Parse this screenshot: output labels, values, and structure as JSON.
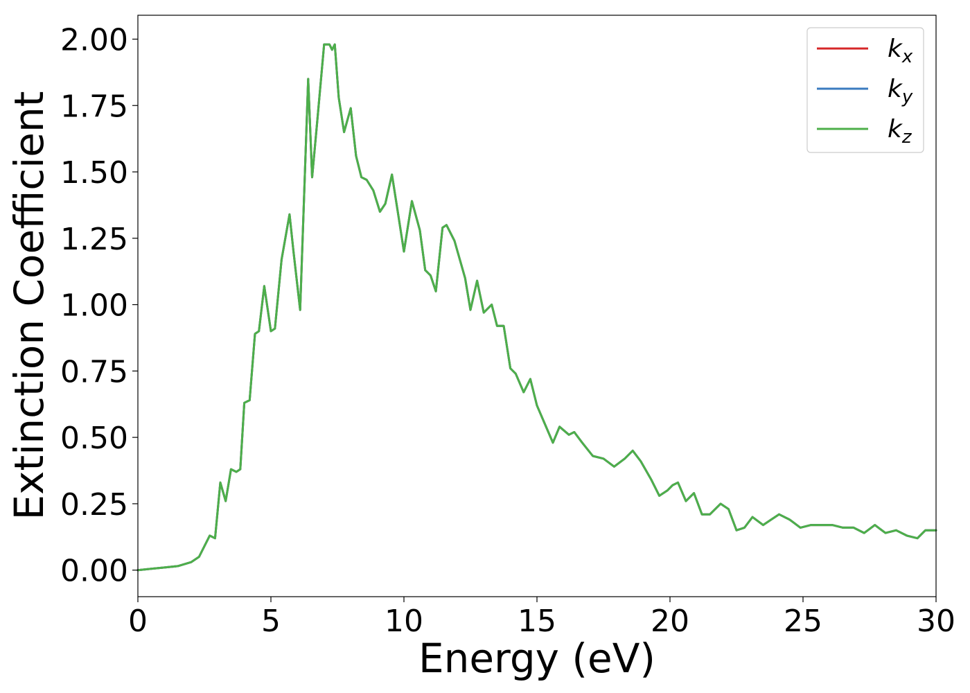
{
  "chart_data": {
    "type": "line",
    "xlabel": "Energy (eV)",
    "ylabel": "Extinction Coefficient",
    "xlim": [
      0,
      30
    ],
    "ylim": [
      -0.1,
      2.09
    ],
    "xticks": [
      0,
      5,
      10,
      15,
      20,
      25,
      30
    ],
    "yticks": [
      0.0,
      0.25,
      0.5,
      0.75,
      1.0,
      1.25,
      1.5,
      1.75,
      2.0
    ],
    "xtick_labels": [
      "0",
      "5",
      "10",
      "15",
      "20",
      "25",
      "30"
    ],
    "ytick_labels": [
      "0.00",
      "0.25",
      "0.50",
      "0.75",
      "1.00",
      "1.25",
      "1.50",
      "1.75",
      "2.00"
    ],
    "grid": false,
    "legend_position": "top-right",
    "x": [
      0,
      0.5,
      1.0,
      1.5,
      2.0,
      2.3,
      2.5,
      2.7,
      2.9,
      3.1,
      3.3,
      3.5,
      3.7,
      3.85,
      4.0,
      4.2,
      4.4,
      4.55,
      4.75,
      5.0,
      5.15,
      5.4,
      5.7,
      5.85,
      6.1,
      6.4,
      6.55,
      6.75,
      7.0,
      7.2,
      7.3,
      7.4,
      7.55,
      7.75,
      8.0,
      8.2,
      8.4,
      8.6,
      8.85,
      9.1,
      9.3,
      9.55,
      9.8,
      10.0,
      10.3,
      10.6,
      10.8,
      11.0,
      11.2,
      11.45,
      11.6,
      11.9,
      12.3,
      12.5,
      12.75,
      13.0,
      13.3,
      13.5,
      13.75,
      14.0,
      14.2,
      14.5,
      14.75,
      15.0,
      15.3,
      15.6,
      15.85,
      16.2,
      16.4,
      16.7,
      17.1,
      17.5,
      17.9,
      18.3,
      18.6,
      18.9,
      19.3,
      19.6,
      19.9,
      20.1,
      20.3,
      20.6,
      20.9,
      21.2,
      21.5,
      21.9,
      22.2,
      22.5,
      22.8,
      23.1,
      23.5,
      23.8,
      24.1,
      24.5,
      24.9,
      25.3,
      25.7,
      26.1,
      26.5,
      26.9,
      27.3,
      27.7,
      28.1,
      28.5,
      28.9,
      29.3,
      29.6,
      30.0
    ],
    "series": [
      {
        "name": "k_x",
        "color": "#d62728"
      },
      {
        "name": "k_y",
        "color": "#3a7bbf"
      },
      {
        "name": "k_z",
        "color": "#4daf4a",
        "values": [
          0.0,
          0.005,
          0.01,
          0.015,
          0.03,
          0.05,
          0.09,
          0.13,
          0.12,
          0.33,
          0.26,
          0.38,
          0.37,
          0.38,
          0.63,
          0.64,
          0.89,
          0.9,
          1.07,
          0.9,
          0.91,
          1.17,
          1.34,
          1.2,
          0.98,
          1.85,
          1.48,
          1.7,
          1.98,
          1.98,
          1.96,
          1.98,
          1.78,
          1.65,
          1.74,
          1.56,
          1.48,
          1.47,
          1.43,
          1.35,
          1.38,
          1.49,
          1.33,
          1.2,
          1.39,
          1.28,
          1.13,
          1.11,
          1.05,
          1.29,
          1.3,
          1.24,
          1.1,
          0.98,
          1.09,
          0.97,
          1.0,
          0.92,
          0.92,
          0.76,
          0.74,
          0.67,
          0.72,
          0.62,
          0.55,
          0.48,
          0.54,
          0.51,
          0.52,
          0.48,
          0.43,
          0.42,
          0.39,
          0.42,
          0.45,
          0.41,
          0.34,
          0.28,
          0.3,
          0.32,
          0.33,
          0.26,
          0.29,
          0.21,
          0.21,
          0.25,
          0.23,
          0.15,
          0.16,
          0.2,
          0.17,
          0.19,
          0.21,
          0.19,
          0.16,
          0.17,
          0.17,
          0.17,
          0.16,
          0.16,
          0.14,
          0.17,
          0.14,
          0.15,
          0.13,
          0.12,
          0.15,
          0.15
        ]
      }
    ]
  }
}
